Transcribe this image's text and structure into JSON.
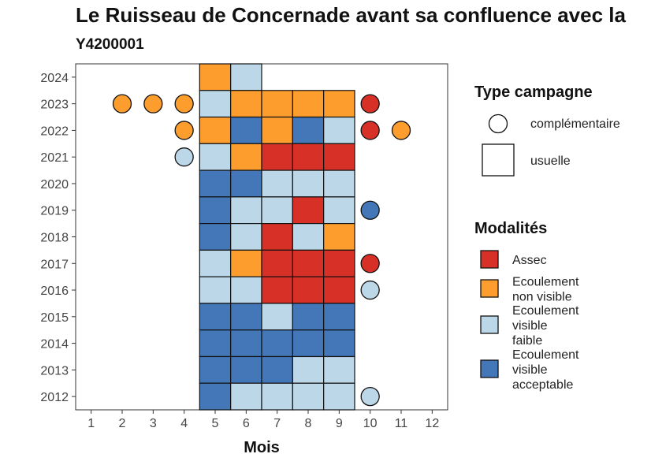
{
  "header": {
    "title": "Le Ruisseau de Concernade avant sa confluence avec la",
    "subtitle": "Y4200001"
  },
  "colors": {
    "Assec": "#d73027",
    "Ecoulement non visible": "#fc9d2e",
    "Ecoulement visible faible": "#bcd7e8",
    "Ecoulement visible acceptable": "#4477b8"
  },
  "chart_data": {
    "type": "heatmap",
    "title": "Le Ruisseau de Concernade avant sa confluence avec la",
    "subtitle": "Y4200001",
    "xlabel": "Mois",
    "ylabel": "",
    "x_ticks": [
      "1",
      "2",
      "3",
      "4",
      "5",
      "6",
      "7",
      "8",
      "9",
      "10",
      "11",
      "12"
    ],
    "y_ticks": [
      "2012",
      "2013",
      "2014",
      "2015",
      "2016",
      "2017",
      "2018",
      "2019",
      "2020",
      "2021",
      "2022",
      "2023",
      "2024"
    ],
    "xlim": [
      0.5,
      12.5
    ],
    "ylim": [
      2011.5,
      2024.5
    ],
    "grid": false,
    "legend_position": "right",
    "legend_type": {
      "title": "Type campagne",
      "items": [
        "complémentaire",
        "usuelle"
      ]
    },
    "legend_modalites": {
      "title": "Modalités",
      "items": [
        {
          "key": "Assec",
          "lines": [
            "Assec"
          ]
        },
        {
          "key": "Ecoulement non visible",
          "lines": [
            "Ecoulement",
            "non visible"
          ]
        },
        {
          "key": "Ecoulement visible faible",
          "lines": [
            "Ecoulement",
            "visible",
            "faible"
          ]
        },
        {
          "key": "Ecoulement visible acceptable",
          "lines": [
            "Ecoulement",
            "visible",
            "acceptable"
          ]
        }
      ]
    },
    "points": [
      {
        "year": 2024,
        "month": 5,
        "type": "usuelle",
        "modalite": "Ecoulement non visible"
      },
      {
        "year": 2024,
        "month": 6,
        "type": "usuelle",
        "modalite": "Ecoulement visible faible"
      },
      {
        "year": 2023,
        "month": 2,
        "type": "complémentaire",
        "modalite": "Ecoulement non visible"
      },
      {
        "year": 2023,
        "month": 3,
        "type": "complémentaire",
        "modalite": "Ecoulement non visible"
      },
      {
        "year": 2023,
        "month": 4,
        "type": "complémentaire",
        "modalite": "Ecoulement non visible"
      },
      {
        "year": 2023,
        "month": 5,
        "type": "usuelle",
        "modalite": "Ecoulement visible faible"
      },
      {
        "year": 2023,
        "month": 6,
        "type": "usuelle",
        "modalite": "Ecoulement non visible"
      },
      {
        "year": 2023,
        "month": 7,
        "type": "usuelle",
        "modalite": "Ecoulement non visible"
      },
      {
        "year": 2023,
        "month": 8,
        "type": "usuelle",
        "modalite": "Ecoulement non visible"
      },
      {
        "year": 2023,
        "month": 9,
        "type": "usuelle",
        "modalite": "Ecoulement non visible"
      },
      {
        "year": 2023,
        "month": 10,
        "type": "complémentaire",
        "modalite": "Assec"
      },
      {
        "year": 2022,
        "month": 4,
        "type": "complémentaire",
        "modalite": "Ecoulement non visible"
      },
      {
        "year": 2022,
        "month": 5,
        "type": "usuelle",
        "modalite": "Ecoulement non visible"
      },
      {
        "year": 2022,
        "month": 6,
        "type": "usuelle",
        "modalite": "Ecoulement visible acceptable"
      },
      {
        "year": 2022,
        "month": 7,
        "type": "usuelle",
        "modalite": "Ecoulement non visible"
      },
      {
        "year": 2022,
        "month": 8,
        "type": "usuelle",
        "modalite": "Ecoulement visible acceptable"
      },
      {
        "year": 2022,
        "month": 9,
        "type": "usuelle",
        "modalite": "Ecoulement visible faible"
      },
      {
        "year": 2022,
        "month": 10,
        "type": "complémentaire",
        "modalite": "Assec"
      },
      {
        "year": 2022,
        "month": 11,
        "type": "complémentaire",
        "modalite": "Ecoulement non visible"
      },
      {
        "year": 2021,
        "month": 4,
        "type": "complémentaire",
        "modalite": "Ecoulement visible faible"
      },
      {
        "year": 2021,
        "month": 5,
        "type": "usuelle",
        "modalite": "Ecoulement visible faible"
      },
      {
        "year": 2021,
        "month": 6,
        "type": "usuelle",
        "modalite": "Ecoulement non visible"
      },
      {
        "year": 2021,
        "month": 7,
        "type": "usuelle",
        "modalite": "Assec"
      },
      {
        "year": 2021,
        "month": 8,
        "type": "usuelle",
        "modalite": "Assec"
      },
      {
        "year": 2021,
        "month": 9,
        "type": "usuelle",
        "modalite": "Assec"
      },
      {
        "year": 2020,
        "month": 5,
        "type": "usuelle",
        "modalite": "Ecoulement visible acceptable"
      },
      {
        "year": 2020,
        "month": 6,
        "type": "usuelle",
        "modalite": "Ecoulement visible acceptable"
      },
      {
        "year": 2020,
        "month": 7,
        "type": "usuelle",
        "modalite": "Ecoulement visible faible"
      },
      {
        "year": 2020,
        "month": 8,
        "type": "usuelle",
        "modalite": "Ecoulement visible faible"
      },
      {
        "year": 2020,
        "month": 9,
        "type": "usuelle",
        "modalite": "Ecoulement visible faible"
      },
      {
        "year": 2019,
        "month": 5,
        "type": "usuelle",
        "modalite": "Ecoulement visible acceptable"
      },
      {
        "year": 2019,
        "month": 6,
        "type": "usuelle",
        "modalite": "Ecoulement visible faible"
      },
      {
        "year": 2019,
        "month": 7,
        "type": "usuelle",
        "modalite": "Ecoulement visible faible"
      },
      {
        "year": 2019,
        "month": 8,
        "type": "usuelle",
        "modalite": "Assec"
      },
      {
        "year": 2019,
        "month": 9,
        "type": "usuelle",
        "modalite": "Ecoulement visible faible"
      },
      {
        "year": 2019,
        "month": 10,
        "type": "complémentaire",
        "modalite": "Ecoulement visible acceptable"
      },
      {
        "year": 2018,
        "month": 5,
        "type": "usuelle",
        "modalite": "Ecoulement visible acceptable"
      },
      {
        "year": 2018,
        "month": 6,
        "type": "usuelle",
        "modalite": "Ecoulement visible faible"
      },
      {
        "year": 2018,
        "month": 7,
        "type": "usuelle",
        "modalite": "Assec"
      },
      {
        "year": 2018,
        "month": 8,
        "type": "usuelle",
        "modalite": "Ecoulement visible faible"
      },
      {
        "year": 2018,
        "month": 9,
        "type": "usuelle",
        "modalite": "Ecoulement non visible"
      },
      {
        "year": 2017,
        "month": 5,
        "type": "usuelle",
        "modalite": "Ecoulement visible faible"
      },
      {
        "year": 2017,
        "month": 6,
        "type": "usuelle",
        "modalite": "Ecoulement non visible"
      },
      {
        "year": 2017,
        "month": 7,
        "type": "usuelle",
        "modalite": "Assec"
      },
      {
        "year": 2017,
        "month": 8,
        "type": "usuelle",
        "modalite": "Assec"
      },
      {
        "year": 2017,
        "month": 9,
        "type": "usuelle",
        "modalite": "Assec"
      },
      {
        "year": 2017,
        "month": 10,
        "type": "complémentaire",
        "modalite": "Assec"
      },
      {
        "year": 2016,
        "month": 5,
        "type": "usuelle",
        "modalite": "Ecoulement visible faible"
      },
      {
        "year": 2016,
        "month": 6,
        "type": "usuelle",
        "modalite": "Ecoulement visible faible"
      },
      {
        "year": 2016,
        "month": 7,
        "type": "usuelle",
        "modalite": "Assec"
      },
      {
        "year": 2016,
        "month": 8,
        "type": "usuelle",
        "modalite": "Assec"
      },
      {
        "year": 2016,
        "month": 9,
        "type": "usuelle",
        "modalite": "Assec"
      },
      {
        "year": 2016,
        "month": 10,
        "type": "complémentaire",
        "modalite": "Ecoulement visible faible"
      },
      {
        "year": 2015,
        "month": 5,
        "type": "usuelle",
        "modalite": "Ecoulement visible acceptable"
      },
      {
        "year": 2015,
        "month": 6,
        "type": "usuelle",
        "modalite": "Ecoulement visible acceptable"
      },
      {
        "year": 2015,
        "month": 7,
        "type": "usuelle",
        "modalite": "Ecoulement visible faible"
      },
      {
        "year": 2015,
        "month": 8,
        "type": "usuelle",
        "modalite": "Ecoulement visible acceptable"
      },
      {
        "year": 2015,
        "month": 9,
        "type": "usuelle",
        "modalite": "Ecoulement visible acceptable"
      },
      {
        "year": 2014,
        "month": 5,
        "type": "usuelle",
        "modalite": "Ecoulement visible acceptable"
      },
      {
        "year": 2014,
        "month": 6,
        "type": "usuelle",
        "modalite": "Ecoulement visible acceptable"
      },
      {
        "year": 2014,
        "month": 7,
        "type": "usuelle",
        "modalite": "Ecoulement visible acceptable"
      },
      {
        "year": 2014,
        "month": 8,
        "type": "usuelle",
        "modalite": "Ecoulement visible acceptable"
      },
      {
        "year": 2014,
        "month": 9,
        "type": "usuelle",
        "modalite": "Ecoulement visible acceptable"
      },
      {
        "year": 2013,
        "month": 5,
        "type": "usuelle",
        "modalite": "Ecoulement visible acceptable"
      },
      {
        "year": 2013,
        "month": 6,
        "type": "usuelle",
        "modalite": "Ecoulement visible acceptable"
      },
      {
        "year": 2013,
        "month": 7,
        "type": "usuelle",
        "modalite": "Ecoulement visible acceptable"
      },
      {
        "year": 2013,
        "month": 8,
        "type": "usuelle",
        "modalite": "Ecoulement visible faible"
      },
      {
        "year": 2013,
        "month": 9,
        "type": "usuelle",
        "modalite": "Ecoulement visible faible"
      },
      {
        "year": 2012,
        "month": 5,
        "type": "usuelle",
        "modalite": "Ecoulement visible acceptable"
      },
      {
        "year": 2012,
        "month": 6,
        "type": "usuelle",
        "modalite": "Ecoulement visible faible"
      },
      {
        "year": 2012,
        "month": 7,
        "type": "usuelle",
        "modalite": "Ecoulement visible faible"
      },
      {
        "year": 2012,
        "month": 8,
        "type": "usuelle",
        "modalite": "Ecoulement visible faible"
      },
      {
        "year": 2012,
        "month": 9,
        "type": "usuelle",
        "modalite": "Ecoulement visible faible"
      },
      {
        "year": 2012,
        "month": 10,
        "type": "complémentaire",
        "modalite": "Ecoulement visible faible"
      }
    ]
  }
}
